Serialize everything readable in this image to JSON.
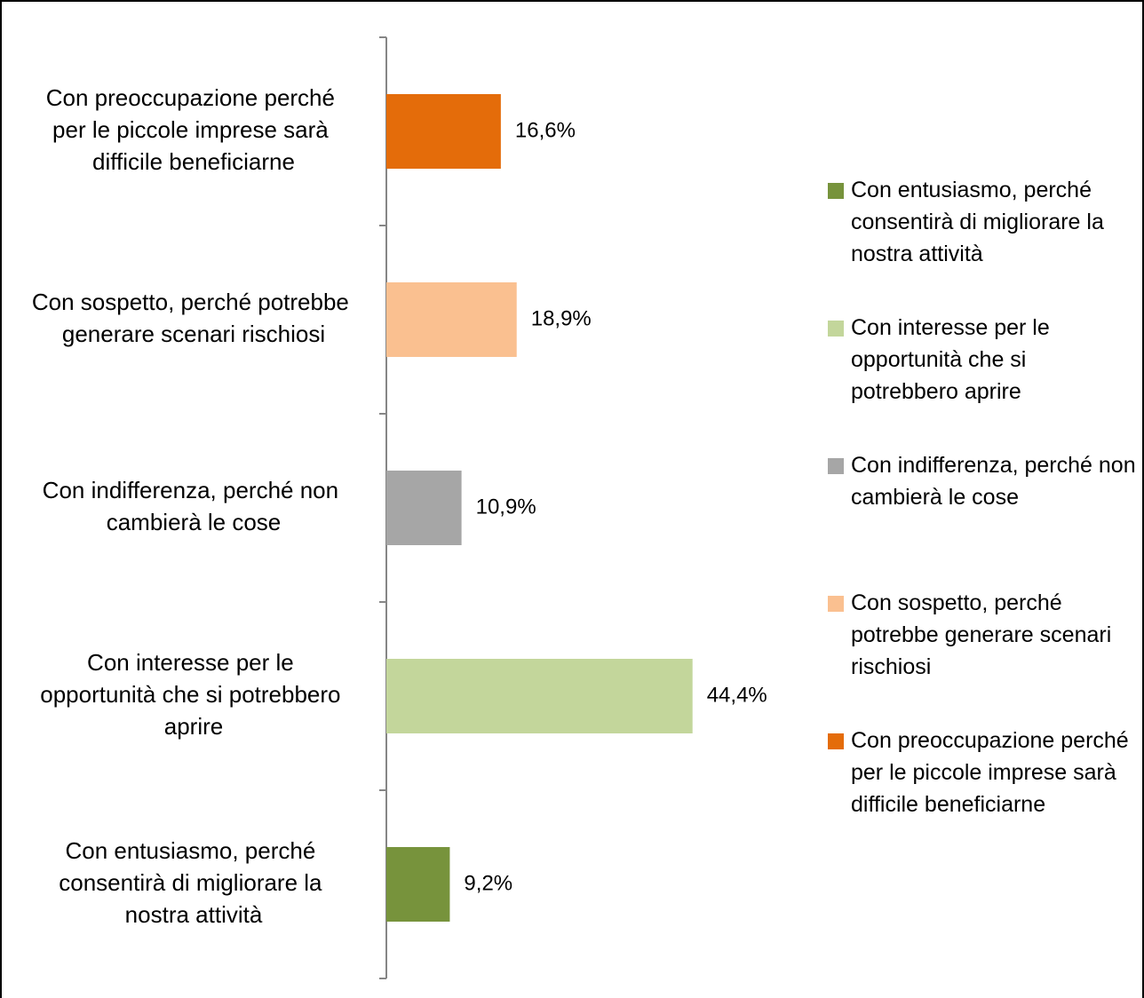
{
  "chart_data": {
    "type": "bar",
    "orientation": "horizontal",
    "categories": [
      "Con entusiasmo, perché consentirà di migliorare la nostra attività",
      "Con interesse per le opportunità che si potrebbero aprire",
      "Con indifferenza, perché non cambierà le cose",
      "Con sospetto, perché potrebbe generare scenari rischiosi",
      "Con preoccupazione perché per le piccole imprese sarà difficile beneficiarne"
    ],
    "values": [
      9.2,
      44.4,
      10.9,
      18.9,
      16.6
    ],
    "value_labels": [
      "9,2%",
      "44,4%",
      "10,9%",
      "18,9%",
      "16,6%"
    ],
    "colors": [
      "#77933c",
      "#c3d69b",
      "#a6a6a6",
      "#fac090",
      "#e46c0a"
    ],
    "xlim": [
      0,
      55
    ],
    "legend": "right"
  }
}
